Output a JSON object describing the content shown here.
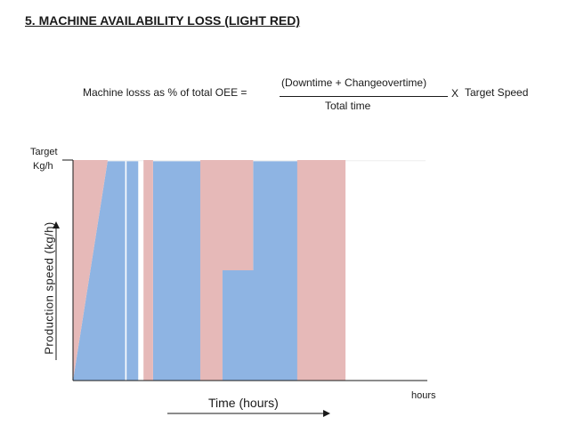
{
  "title": "5. MACHINE AVAILABILITY LOSS (LIGHT RED)",
  "formula": {
    "lhs": "Machine losss as % of total OEE =",
    "numerator": "(Downtime  + Changeovertime)",
    "denominator": "Total time",
    "operator": "X",
    "rhs": "Target Speed"
  },
  "axis": {
    "target_label": "Target",
    "target_unit": "Kg/h",
    "y_label": "Production speed (kg/h)",
    "x_label": "Time (hours)",
    "x_unit_label": "hours"
  },
  "colors": {
    "production": "#8eb4e3",
    "loss": "#e6b9b8",
    "headroom": "#f2f2f2",
    "axis": "#1a1a1a"
  },
  "chart_data": {
    "type": "area",
    "x_range": [
      0,
      1
    ],
    "y_range": [
      0,
      1
    ],
    "target_speed_level": 0.9,
    "production_level": 0.895,
    "production_intervals": [
      {
        "start": 0.0,
        "end": 0.148,
        "speed": 0.895,
        "ramp_up": true
      },
      {
        "start": 0.152,
        "end": 0.185,
        "speed": 0.895
      },
      {
        "start": 0.227,
        "end": 0.424,
        "speed": 0.895
      },
      {
        "start": 0.424,
        "end": 0.645,
        "speed": 0.895,
        "reduced_start": true
      }
    ],
    "loss_intervals": [
      {
        "start": 0.0,
        "end": 0.148
      },
      {
        "start": 0.185,
        "end": 0.227
      },
      {
        "start": 0.424,
        "end": 0.469
      },
      {
        "start": 0.645,
        "end": 0.778
      }
    ]
  }
}
